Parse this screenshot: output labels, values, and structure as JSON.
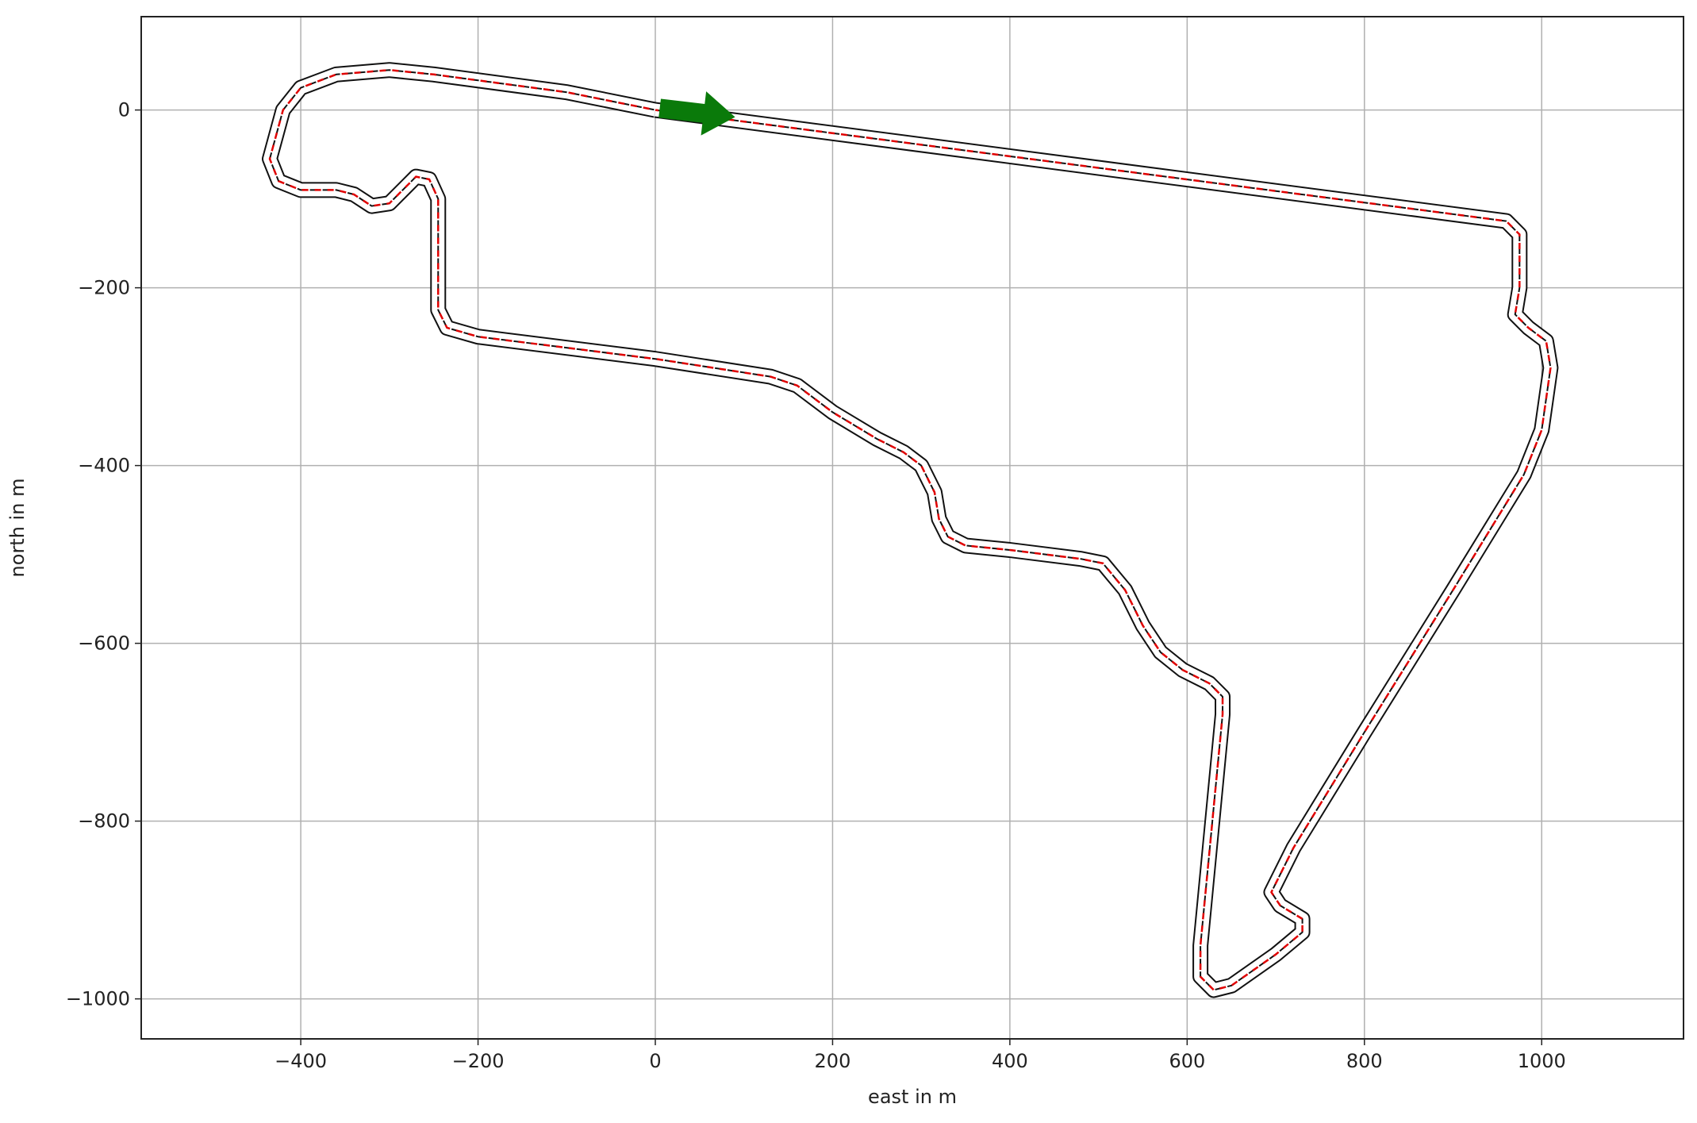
{
  "chart_data": {
    "type": "line",
    "x_label": "east in m",
    "y_label": "north in m",
    "series": [
      {
        "color": "#e00000",
        "x": [
          0,
          960,
          975,
          975,
          970,
          985,
          1005,
          1010,
          1000,
          980,
          900,
          800,
          720,
          695,
          705,
          730,
          730,
          700,
          650,
          630,
          615,
          615,
          640,
          640,
          625,
          595,
          570,
          550,
          530,
          505,
          480,
          400,
          350,
          330,
          320,
          315,
          300,
          280,
          250,
          200,
          160,
          130,
          0,
          -200,
          -235,
          -245,
          -245,
          -255,
          -270,
          -285,
          -300,
          -320,
          -340,
          -360,
          -400,
          -425,
          -435,
          -420,
          -400,
          -360,
          -300,
          -250,
          -100,
          0
        ],
        "y": [
          0,
          -125,
          -140,
          -200,
          -230,
          -245,
          -260,
          -290,
          -360,
          -410,
          -540,
          -700,
          -830,
          -880,
          -895,
          -910,
          -925,
          -950,
          -985,
          -990,
          -975,
          -940,
          -680,
          -660,
          -645,
          -630,
          -610,
          -580,
          -540,
          -510,
          -505,
          -495,
          -490,
          -480,
          -460,
          -430,
          -400,
          -385,
          -370,
          -340,
          -310,
          -300,
          -280,
          -255,
          -245,
          -225,
          -100,
          -78,
          -75,
          -90,
          -105,
          -108,
          -95,
          -90,
          -90,
          -80,
          -55,
          0,
          25,
          40,
          45,
          40,
          20,
          0
        ]
      }
    ],
    "start_arrow": {
      "color": "#0a7a0a",
      "x": [
        5,
        90
      ],
      "y": [
        2,
        -8
      ]
    },
    "xlim": [
      -580,
      1160
    ],
    "ylim": [
      -1045,
      105
    ],
    "xticks": [
      {
        "value": -400,
        "label": "−400"
      },
      {
        "value": -200,
        "label": "−200"
      },
      0,
      200,
      400,
      600,
      800,
      1000
    ],
    "yticks": [
      {
        "value": -1000,
        "label": "−1000"
      },
      {
        "value": -800,
        "label": "−800"
      },
      {
        "value": -600,
        "label": "−600"
      },
      {
        "value": -400,
        "label": "−400"
      },
      {
        "value": -200,
        "label": "−200"
      },
      0
    ],
    "grid": true
  }
}
